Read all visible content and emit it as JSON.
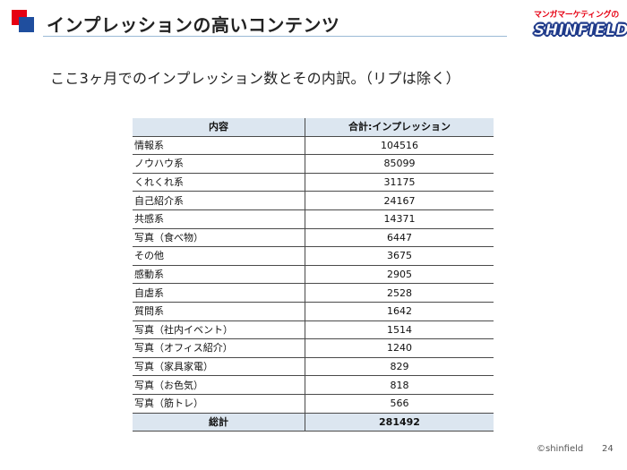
{
  "header": {
    "title": "インプレッションの高いコンテンツ",
    "accent_red": "#e60012",
    "accent_blue": "#1f4e9e"
  },
  "logo": {
    "tagline": "マンガマーケティングの",
    "brand": "SHINFIELD"
  },
  "subtitle": "ここ3ヶ月でのインプレッション数とその内訳。（リプは除く）",
  "table": {
    "headers": [
      "内容",
      "合計:インプレッション"
    ],
    "rows": [
      {
        "label": "情報系",
        "value": "104516"
      },
      {
        "label": "ノウハウ系",
        "value": "85099"
      },
      {
        "label": "くれくれ系",
        "value": "31175"
      },
      {
        "label": "自己紹介系",
        "value": "24167"
      },
      {
        "label": "共感系",
        "value": "14371"
      },
      {
        "label": "写真（食べ物）",
        "value": "6447"
      },
      {
        "label": "その他",
        "value": "3675"
      },
      {
        "label": "感動系",
        "value": "2905"
      },
      {
        "label": "自虐系",
        "value": "2528"
      },
      {
        "label": "質問系",
        "value": "1642"
      },
      {
        "label": "写真（社内イベント）",
        "value": "1514"
      },
      {
        "label": "写真（オフィス紹介）",
        "value": "1240"
      },
      {
        "label": "写真（家具家電）",
        "value": "829"
      },
      {
        "label": "写真（お色気）",
        "value": "818"
      },
      {
        "label": "写真（筋トレ）",
        "value": "566"
      }
    ],
    "total": {
      "label": "総計",
      "value": "281492"
    },
    "header_bg": "#dce6f0"
  },
  "footer": {
    "copyright": "©shinfield",
    "page_number": "24"
  }
}
